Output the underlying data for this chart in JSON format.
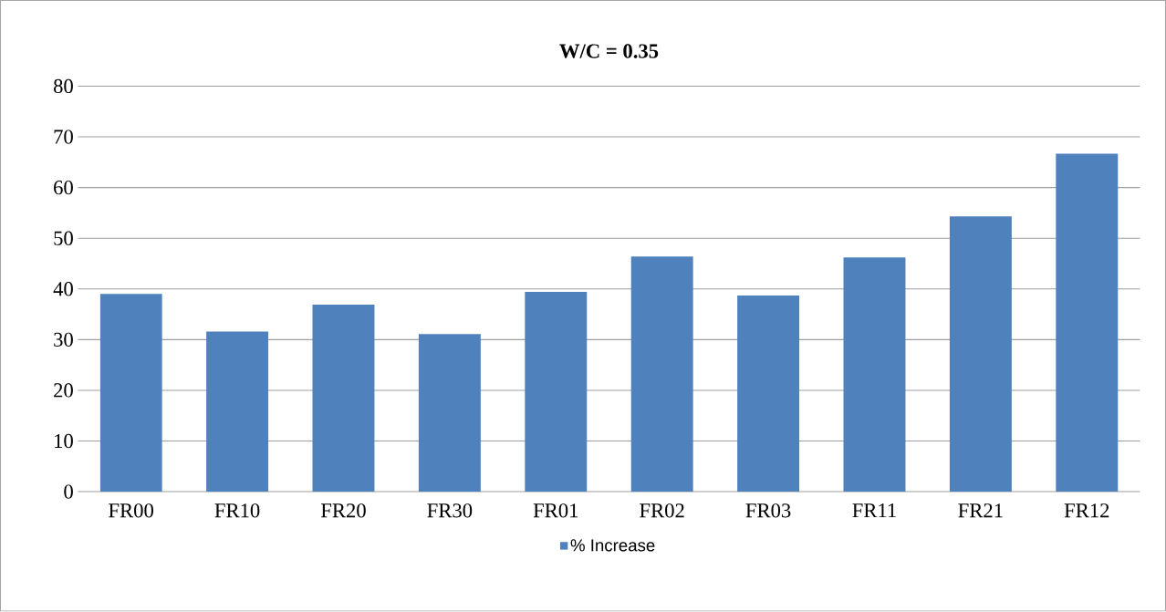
{
  "chart_data": {
    "type": "bar",
    "title": "W/C = 0.35",
    "categories": [
      "FR00",
      "FR10",
      "FR20",
      "FR30",
      "FR01",
      "FR02",
      "FR03",
      "FR11",
      "FR21",
      "FR12"
    ],
    "series": [
      {
        "name": "% Increase",
        "color": "#4f81bd",
        "values": [
          39.0,
          31.6,
          36.9,
          31.1,
          39.4,
          46.4,
          38.7,
          46.2,
          54.3,
          66.7
        ]
      }
    ],
    "ylim": [
      0,
      80
    ],
    "yticks": [
      0,
      10,
      20,
      30,
      40,
      50,
      60,
      70,
      80
    ],
    "grid": "y",
    "legend": "bottom"
  }
}
